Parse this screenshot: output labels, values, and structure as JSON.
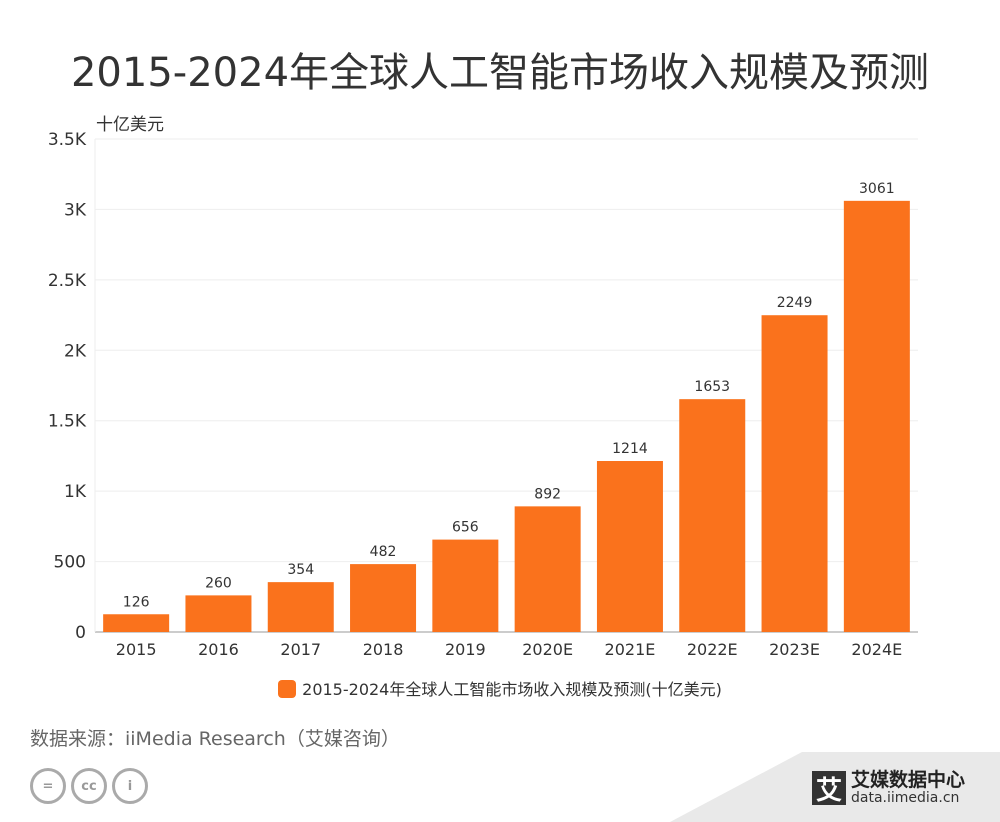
{
  "title": "2015-2024年全球人工智能市场收入规模及预测",
  "chart_data": {
    "type": "bar",
    "title": "2015-2024年全球人工智能市场收入规模及预测",
    "ylabel": "十亿美元",
    "categories": [
      "2015",
      "2016",
      "2017",
      "2018",
      "2019",
      "2020E",
      "2021E",
      "2022E",
      "2023E",
      "2024E"
    ],
    "series": [
      {
        "name": "2015-2024年全球人工智能市场收入规模及预测(十亿美元)",
        "values": [
          126,
          260,
          354,
          482,
          656,
          892,
          1214,
          1653,
          2249,
          3061
        ]
      }
    ],
    "ylim": [
      0,
      3500
    ],
    "yticks": [
      {
        "v": 0,
        "label": "0"
      },
      {
        "v": 500,
        "label": "500"
      },
      {
        "v": 1000,
        "label": "1K"
      },
      {
        "v": 1500,
        "label": "1.5K"
      },
      {
        "v": 2000,
        "label": "2K"
      },
      {
        "v": 2500,
        "label": "2.5K"
      },
      {
        "v": 3000,
        "label": "3K"
      },
      {
        "v": 3500,
        "label": "3.5K"
      }
    ],
    "grid": true,
    "legend": "bottom",
    "color": "#fa721c"
  },
  "source": "数据来源：iiMedia Research（艾媒咨询）",
  "brand": {
    "logo": "艾",
    "name": "艾媒数据中心",
    "url": "data.iimedia.cn"
  },
  "cc_icons": [
    "equals-icon",
    "cc-icon",
    "person-icon"
  ]
}
